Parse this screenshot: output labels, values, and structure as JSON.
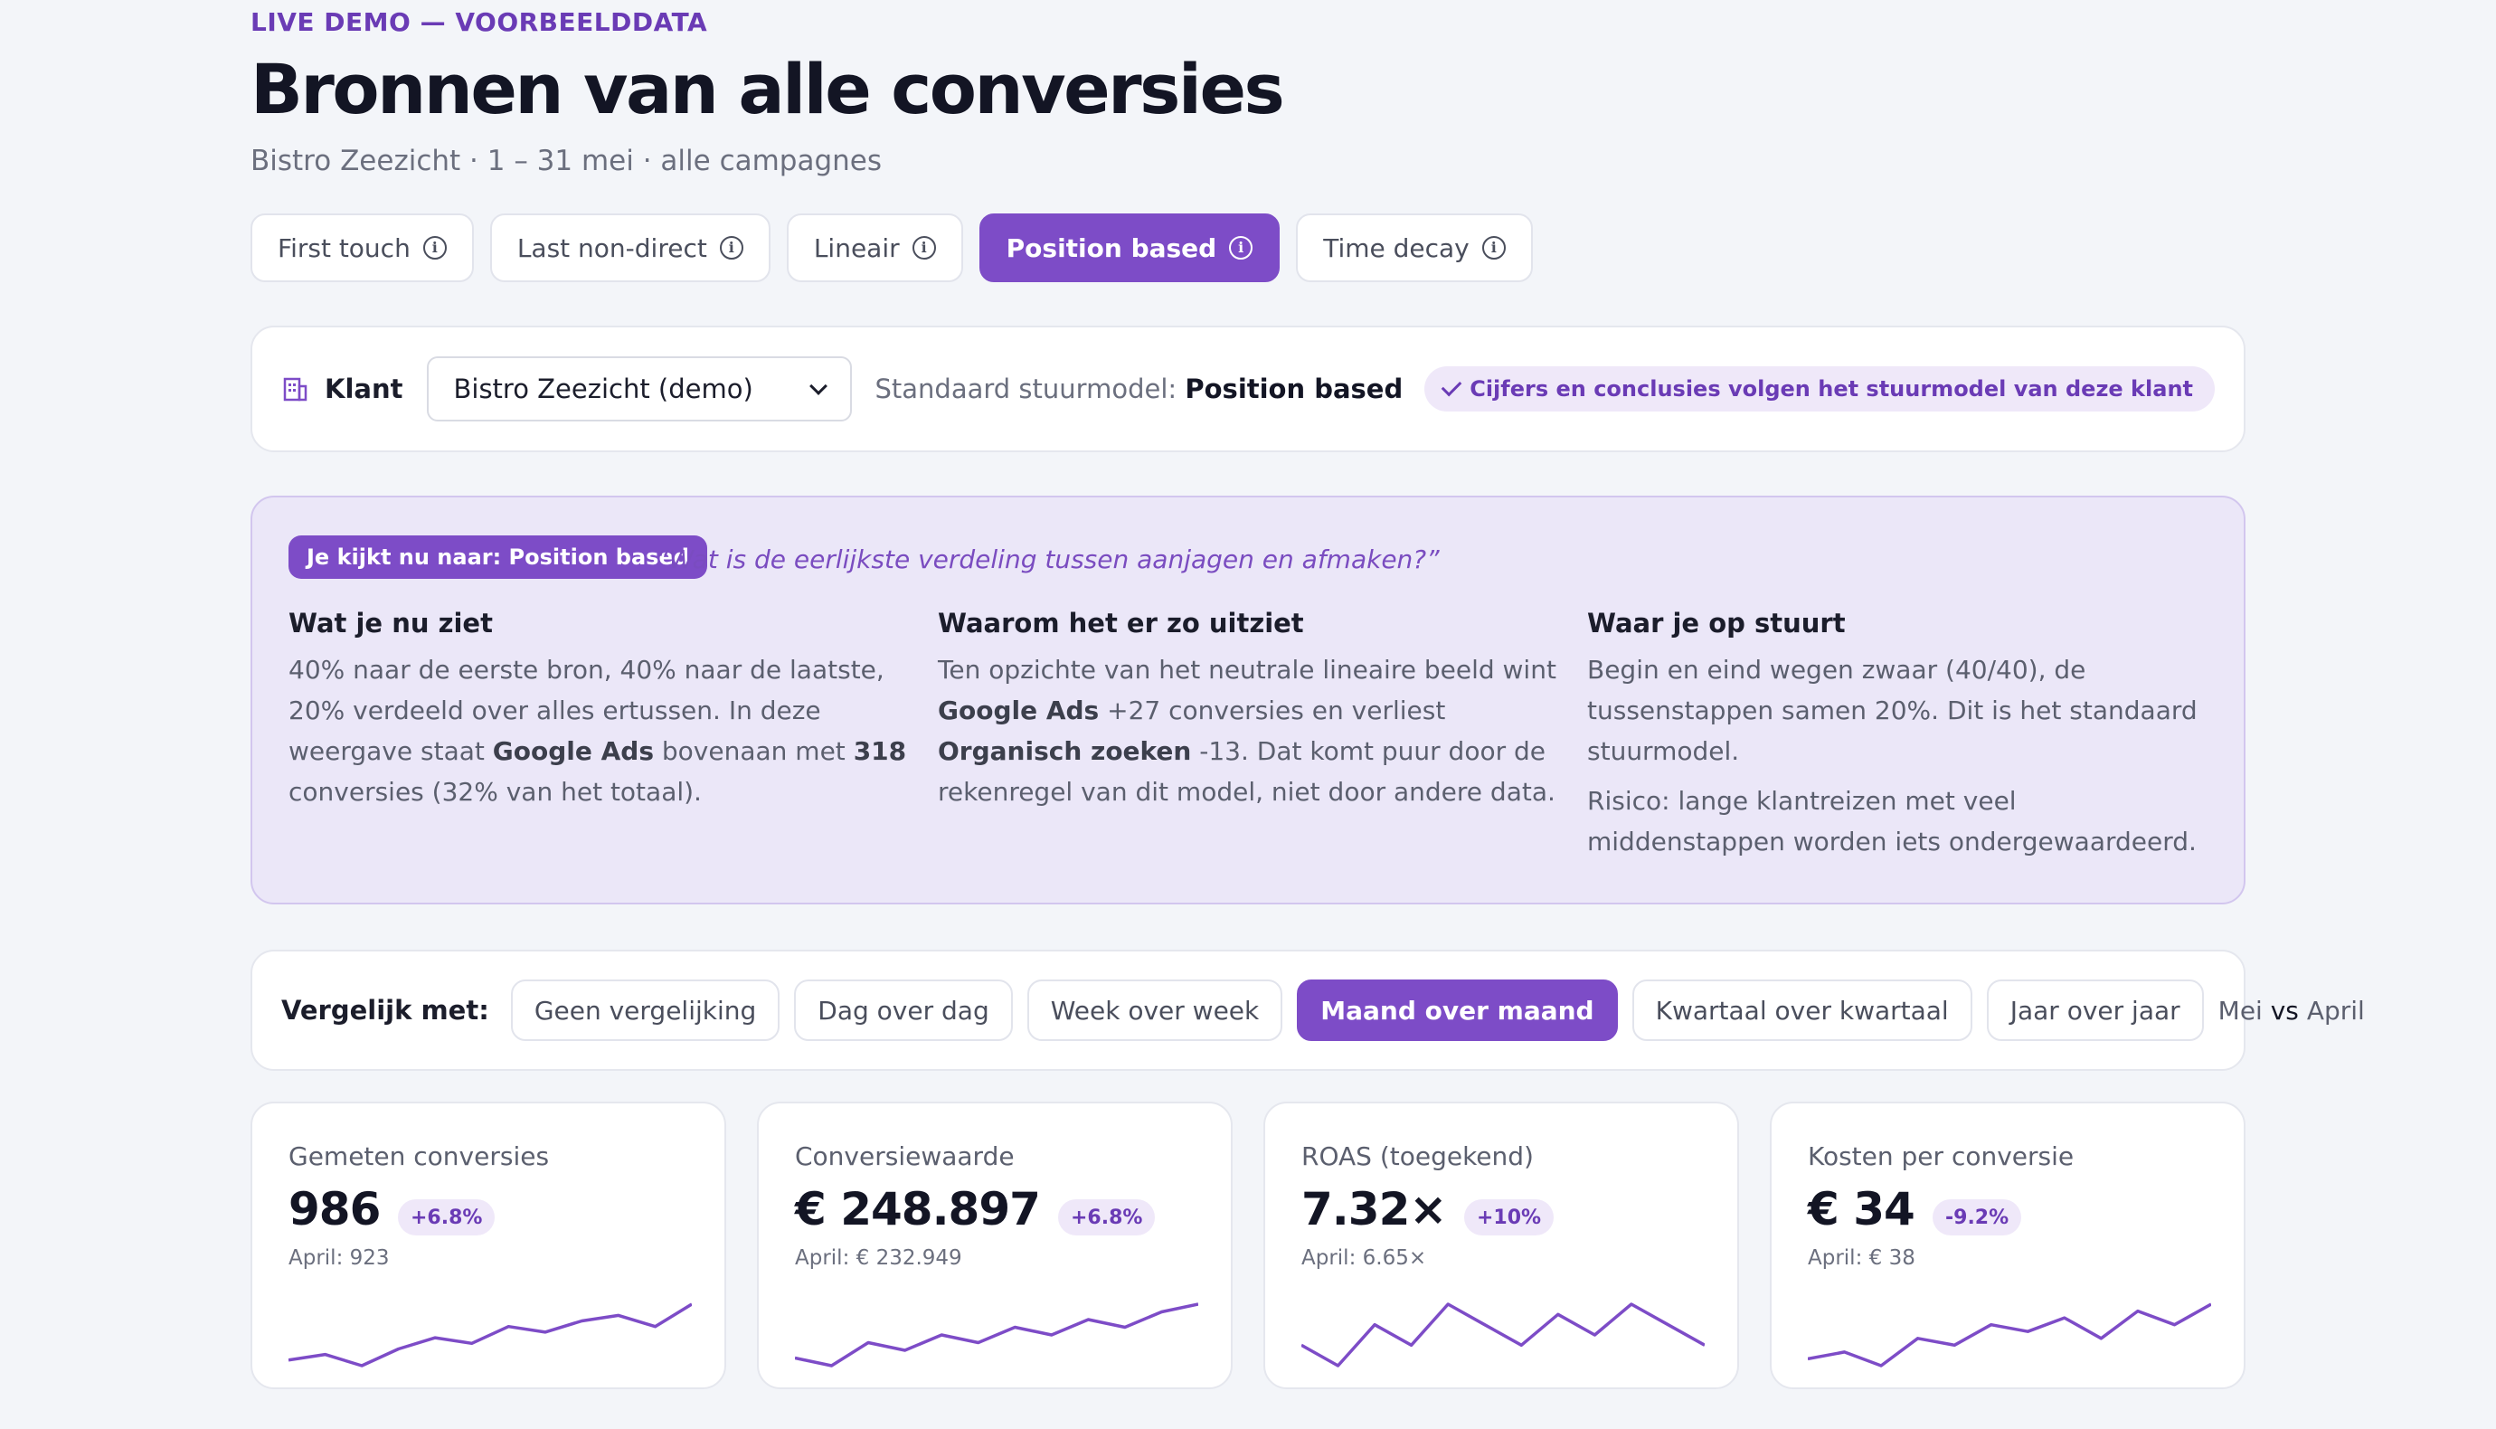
{
  "header": {
    "eyebrow": "LIVE DEMO — VOORBEELDDATA",
    "title": "Bronnen van alle conversies",
    "subtitle": "Bistro Zeezicht · 1 – 31 mei · alle campagnes"
  },
  "models": [
    {
      "label": "First touch",
      "active": false
    },
    {
      "label": "Last non-direct",
      "active": false
    },
    {
      "label": "Lineair",
      "active": false
    },
    {
      "label": "Position based",
      "active": true
    },
    {
      "label": "Time decay",
      "active": false
    }
  ],
  "client": {
    "label": "Klant",
    "selected": "Bistro Zeezicht (demo)",
    "std_label": "Standaard stuurmodel:",
    "std_value": "Position based",
    "badge": "Cijfers en conclusies volgen het stuurmodel van deze klant"
  },
  "explain": {
    "badge": "Je kijkt nu naar: Position based",
    "quote": "“Wat is de eerlijkste verdeling tussen aanjagen en afmaken?”",
    "col1": {
      "title": "Wat je nu ziet",
      "t1": "40% naar de eerste bron, 40% naar de laatste, 20% verdeeld over alles ertussen. In deze weergave staat ",
      "b1": "Google Ads",
      "t2": " bovenaan met ",
      "b2": "318",
      "t3": " conversies (32% van het totaal)."
    },
    "col2": {
      "title": "Waarom het er zo uitziet",
      "t1": "Ten opzichte van het neutrale lineaire beeld wint ",
      "b1": "Google Ads",
      "t2": " +27 conversies en verliest ",
      "b2": "Organisch zoeken",
      "t3": " -13. Dat komt puur door de rekenregel van dit model, niet door andere data."
    },
    "col3": {
      "title": "Waar je op stuurt",
      "p1": "Begin en eind wegen zwaar (40/40), de tussenstappen samen 20%. Dit is het standaard stuurmodel.",
      "p2": "Risico: lange klantreizen met veel middenstappen worden iets ondergewaardeerd."
    }
  },
  "compare": {
    "label": "Vergelijk met:",
    "options": [
      {
        "label": "Geen vergelijking",
        "active": false
      },
      {
        "label": "Dag over dag",
        "active": false
      },
      {
        "label": "Week over week",
        "active": false
      },
      {
        "label": "Maand over maand",
        "active": true
      },
      {
        "label": "Kwartaal over kwartaal",
        "active": false
      },
      {
        "label": "Jaar over jaar",
        "active": false
      }
    ],
    "current": "Mei",
    "vs": "vs",
    "previous": "April"
  },
  "kpis": [
    {
      "label": "Gemeten conversies",
      "value": "986",
      "delta": "+6.8%",
      "prev": "April: 923",
      "trend": [
        3,
        4,
        2,
        5,
        7,
        6,
        9,
        8,
        10,
        11,
        9,
        13
      ]
    },
    {
      "label": "Conversiewaarde",
      "value": "€ 248.897",
      "delta": "+6.8%",
      "prev": "April: € 232.949",
      "trend": [
        4,
        3,
        6,
        5,
        7,
        6,
        8,
        7,
        9,
        8,
        10,
        11
      ]
    },
    {
      "label": "ROAS (toegekend)",
      "value": "7.32×",
      "delta": "+10%",
      "prev": "April: 6.65×",
      "trend": [
        6,
        4,
        8,
        6,
        10,
        8,
        6,
        9,
        7,
        10,
        8,
        6
      ]
    },
    {
      "label": "Kosten per conversie",
      "value": "€ 34",
      "delta": "-9.2%",
      "prev": "April: € 38",
      "trend": [
        5,
        6,
        4,
        8,
        7,
        10,
        9,
        11,
        8,
        12,
        10,
        13
      ]
    }
  ],
  "colors": {
    "accent": "#7d4cc7",
    "accent_soft": "#efe8f9",
    "explain_bg": "#ebe7f8"
  }
}
